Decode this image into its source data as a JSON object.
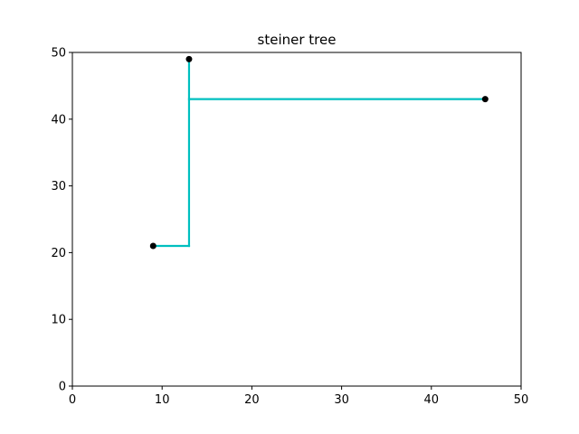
{
  "chart_data": {
    "type": "line",
    "title": "steiner tree",
    "xlabel": "",
    "ylabel": "",
    "xlim": [
      0,
      50
    ],
    "ylim": [
      0,
      50
    ],
    "xticks": [
      0,
      10,
      20,
      30,
      40,
      50
    ],
    "yticks": [
      0,
      10,
      20,
      30,
      40,
      50
    ],
    "grid": false,
    "terminals": [
      {
        "x": 9,
        "y": 21
      },
      {
        "x": 13,
        "y": 49
      },
      {
        "x": 46,
        "y": 43
      }
    ],
    "edges": [
      {
        "x": [
          9,
          13
        ],
        "y": [
          21,
          21
        ]
      },
      {
        "x": [
          13,
          13
        ],
        "y": [
          21,
          49
        ]
      },
      {
        "x": [
          13,
          46
        ],
        "y": [
          43,
          43
        ]
      }
    ],
    "edge_color": "#00bfbf",
    "point_color": "#000000"
  }
}
